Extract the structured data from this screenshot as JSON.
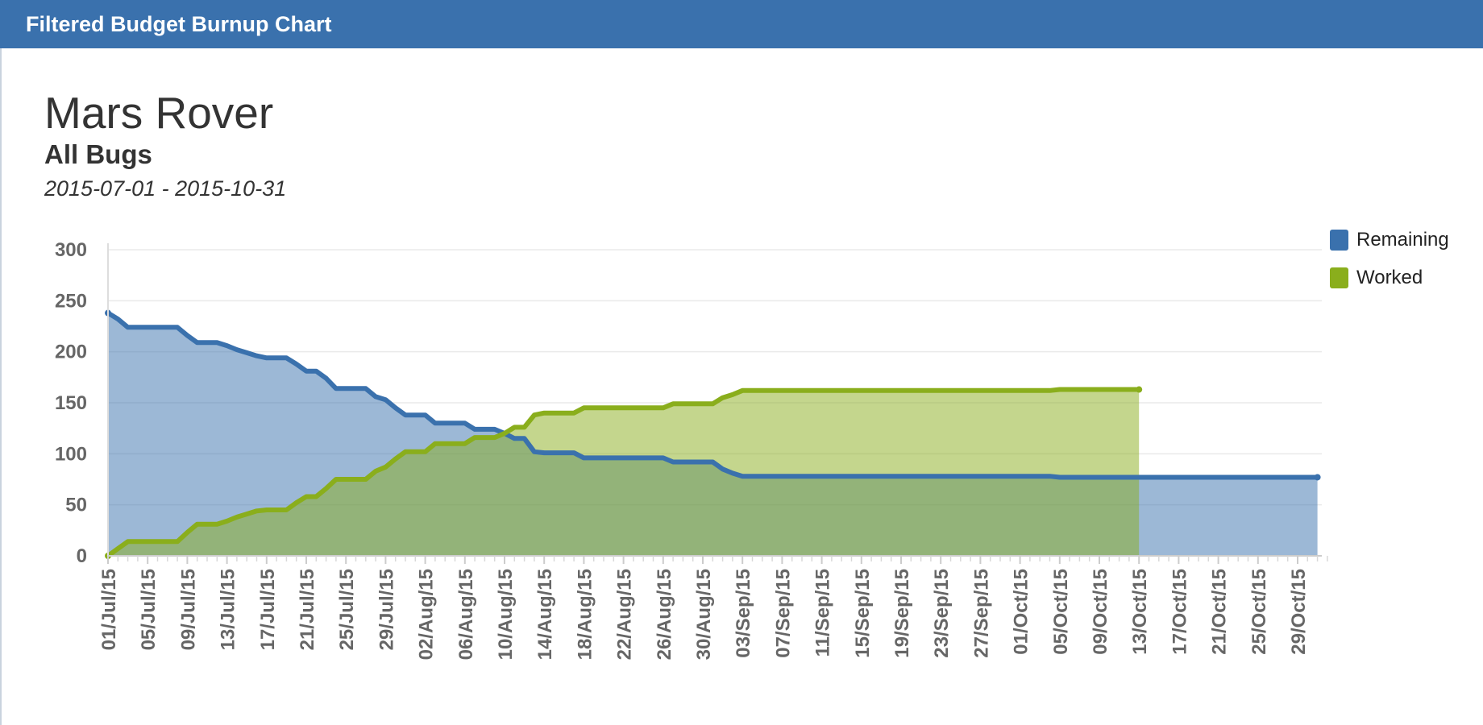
{
  "header": {
    "title": "Filtered Budget Burnup Chart"
  },
  "chart_header": {
    "title": "Mars Rover",
    "subtitle": "All Bugs",
    "date_range": "2015-07-01 - 2015-10-31"
  },
  "colors": {
    "remaining": "#3a71ad",
    "worked": "#8aae1c",
    "header_bg": "#3a71ad"
  },
  "chart_data": {
    "type": "area",
    "title": "Mars Rover",
    "subtitle": "All Bugs",
    "xlabel": "",
    "ylabel": "",
    "ylim": [
      0,
      300
    ],
    "yticks": [
      0,
      50,
      100,
      150,
      200,
      250,
      300
    ],
    "x_start": "2015-07-01",
    "x_end": "2015-10-31",
    "x_tick_labels": [
      "01/Jul/15",
      "05/Jul/15",
      "09/Jul/15",
      "13/Jul/15",
      "17/Jul/15",
      "21/Jul/15",
      "25/Jul/15",
      "29/Jul/15",
      "02/Aug/15",
      "06/Aug/15",
      "10/Aug/15",
      "14/Aug/15",
      "18/Aug/15",
      "22/Aug/15",
      "26/Aug/15",
      "30/Aug/15",
      "03/Sep/15",
      "07/Sep/15",
      "11/Sep/15",
      "15/Sep/15",
      "19/Sep/15",
      "23/Sep/15",
      "27/Sep/15",
      "01/Oct/15",
      "05/Oct/15",
      "09/Oct/15",
      "13/Oct/15",
      "17/Oct/15",
      "21/Oct/15",
      "25/Oct/15",
      "29/Oct/15"
    ],
    "legend_position": "top-right",
    "grid": true,
    "series": [
      {
        "name": "Remaining",
        "color": "#3a71ad",
        "points": [
          [
            "2015-07-01",
            238
          ],
          [
            "2015-07-02",
            232
          ],
          [
            "2015-07-03",
            224
          ],
          [
            "2015-07-04",
            224
          ],
          [
            "2015-07-05",
            224
          ],
          [
            "2015-07-06",
            224
          ],
          [
            "2015-07-07",
            224
          ],
          [
            "2015-07-08",
            224
          ],
          [
            "2015-07-09",
            216
          ],
          [
            "2015-07-10",
            209
          ],
          [
            "2015-07-11",
            209
          ],
          [
            "2015-07-12",
            209
          ],
          [
            "2015-07-13",
            206
          ],
          [
            "2015-07-14",
            202
          ],
          [
            "2015-07-15",
            199
          ],
          [
            "2015-07-16",
            196
          ],
          [
            "2015-07-17",
            194
          ],
          [
            "2015-07-18",
            194
          ],
          [
            "2015-07-19",
            194
          ],
          [
            "2015-07-20",
            188
          ],
          [
            "2015-07-21",
            181
          ],
          [
            "2015-07-22",
            181
          ],
          [
            "2015-07-23",
            174
          ],
          [
            "2015-07-24",
            164
          ],
          [
            "2015-07-25",
            164
          ],
          [
            "2015-07-26",
            164
          ],
          [
            "2015-07-27",
            164
          ],
          [
            "2015-07-28",
            156
          ],
          [
            "2015-07-29",
            153
          ],
          [
            "2015-07-30",
            145
          ],
          [
            "2015-07-31",
            138
          ],
          [
            "2015-08-01",
            138
          ],
          [
            "2015-08-02",
            138
          ],
          [
            "2015-08-03",
            130
          ],
          [
            "2015-08-04",
            130
          ],
          [
            "2015-08-05",
            130
          ],
          [
            "2015-08-06",
            130
          ],
          [
            "2015-08-07",
            124
          ],
          [
            "2015-08-08",
            124
          ],
          [
            "2015-08-09",
            124
          ],
          [
            "2015-08-10",
            120
          ],
          [
            "2015-08-11",
            115
          ],
          [
            "2015-08-12",
            115
          ],
          [
            "2015-08-13",
            102
          ],
          [
            "2015-08-14",
            101
          ],
          [
            "2015-08-15",
            101
          ],
          [
            "2015-08-16",
            101
          ],
          [
            "2015-08-17",
            101
          ],
          [
            "2015-08-18",
            96
          ],
          [
            "2015-08-19",
            96
          ],
          [
            "2015-08-20",
            96
          ],
          [
            "2015-08-21",
            96
          ],
          [
            "2015-08-22",
            96
          ],
          [
            "2015-08-23",
            96
          ],
          [
            "2015-08-24",
            96
          ],
          [
            "2015-08-25",
            96
          ],
          [
            "2015-08-26",
            96
          ],
          [
            "2015-08-27",
            92
          ],
          [
            "2015-08-28",
            92
          ],
          [
            "2015-08-29",
            92
          ],
          [
            "2015-08-30",
            92
          ],
          [
            "2015-08-31",
            92
          ],
          [
            "2015-09-01",
            85
          ],
          [
            "2015-09-02",
            81
          ],
          [
            "2015-09-03",
            78
          ],
          [
            "2015-09-04",
            78
          ],
          [
            "2015-09-10",
            78
          ],
          [
            "2015-09-20",
            78
          ],
          [
            "2015-09-30",
            78
          ],
          [
            "2015-10-04",
            78
          ],
          [
            "2015-10-05",
            77
          ],
          [
            "2015-10-13",
            77
          ],
          [
            "2015-10-20",
            77
          ],
          [
            "2015-10-31",
            77
          ]
        ]
      },
      {
        "name": "Worked",
        "color": "#8aae1c",
        "points": [
          [
            "2015-07-01",
            0
          ],
          [
            "2015-07-02",
            7
          ],
          [
            "2015-07-03",
            14
          ],
          [
            "2015-07-04",
            14
          ],
          [
            "2015-07-05",
            14
          ],
          [
            "2015-07-06",
            14
          ],
          [
            "2015-07-07",
            14
          ],
          [
            "2015-07-08",
            14
          ],
          [
            "2015-07-09",
            23
          ],
          [
            "2015-07-10",
            31
          ],
          [
            "2015-07-11",
            31
          ],
          [
            "2015-07-12",
            31
          ],
          [
            "2015-07-13",
            34
          ],
          [
            "2015-07-14",
            38
          ],
          [
            "2015-07-15",
            41
          ],
          [
            "2015-07-16",
            44
          ],
          [
            "2015-07-17",
            45
          ],
          [
            "2015-07-18",
            45
          ],
          [
            "2015-07-19",
            45
          ],
          [
            "2015-07-20",
            52
          ],
          [
            "2015-07-21",
            58
          ],
          [
            "2015-07-22",
            58
          ],
          [
            "2015-07-23",
            66
          ],
          [
            "2015-07-24",
            75
          ],
          [
            "2015-07-25",
            75
          ],
          [
            "2015-07-26",
            75
          ],
          [
            "2015-07-27",
            75
          ],
          [
            "2015-07-28",
            83
          ],
          [
            "2015-07-29",
            87
          ],
          [
            "2015-07-30",
            95
          ],
          [
            "2015-07-31",
            102
          ],
          [
            "2015-08-01",
            102
          ],
          [
            "2015-08-02",
            102
          ],
          [
            "2015-08-03",
            110
          ],
          [
            "2015-08-04",
            110
          ],
          [
            "2015-08-05",
            110
          ],
          [
            "2015-08-06",
            110
          ],
          [
            "2015-08-07",
            116
          ],
          [
            "2015-08-08",
            116
          ],
          [
            "2015-08-09",
            116
          ],
          [
            "2015-08-10",
            120
          ],
          [
            "2015-08-11",
            126
          ],
          [
            "2015-08-12",
            126
          ],
          [
            "2015-08-13",
            138
          ],
          [
            "2015-08-14",
            140
          ],
          [
            "2015-08-15",
            140
          ],
          [
            "2015-08-16",
            140
          ],
          [
            "2015-08-17",
            140
          ],
          [
            "2015-08-18",
            145
          ],
          [
            "2015-08-19",
            145
          ],
          [
            "2015-08-20",
            145
          ],
          [
            "2015-08-21",
            145
          ],
          [
            "2015-08-22",
            145
          ],
          [
            "2015-08-23",
            145
          ],
          [
            "2015-08-24",
            145
          ],
          [
            "2015-08-25",
            145
          ],
          [
            "2015-08-26",
            145
          ],
          [
            "2015-08-27",
            149
          ],
          [
            "2015-08-28",
            149
          ],
          [
            "2015-08-29",
            149
          ],
          [
            "2015-08-30",
            149
          ],
          [
            "2015-08-31",
            149
          ],
          [
            "2015-09-01",
            155
          ],
          [
            "2015-09-02",
            158
          ],
          [
            "2015-09-03",
            162
          ],
          [
            "2015-09-04",
            162
          ],
          [
            "2015-09-10",
            162
          ],
          [
            "2015-09-20",
            162
          ],
          [
            "2015-09-30",
            162
          ],
          [
            "2015-10-04",
            162
          ],
          [
            "2015-10-05",
            163
          ],
          [
            "2015-10-13",
            163
          ]
        ]
      }
    ]
  }
}
